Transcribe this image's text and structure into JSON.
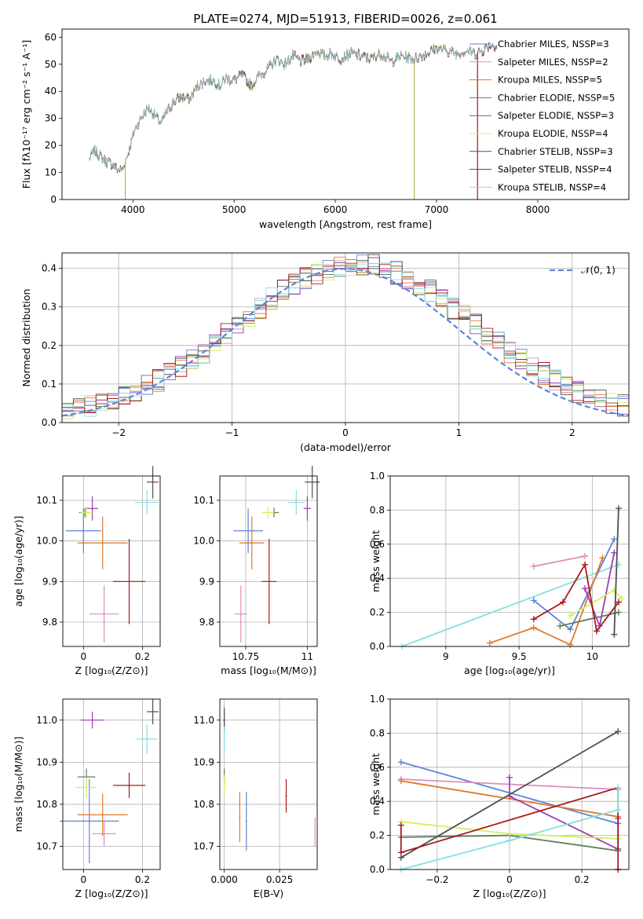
{
  "chart_data": [
    {
      "panel": "spectrum",
      "type": "line",
      "title": "PLATE=0274, MJD=51913, FIBERID=0026, z=0.061",
      "xlabel": "wavelength [Angstrom, rest frame]",
      "ylabel": "Flux [fλ10⁻¹⁷ erg cm⁻² s⁻¹ A⁻¹]",
      "xlim": [
        3300,
        8900
      ],
      "ylim": [
        0,
        63
      ],
      "xticks": [
        4000,
        5000,
        6000,
        7000,
        8000
      ],
      "yticks": [
        0,
        10,
        20,
        30,
        40,
        50,
        60
      ],
      "grid": false,
      "legend": "top-right",
      "series": [
        {
          "name": "Chabrier MILES, NSSP=3",
          "color": "#5e85d6"
        },
        {
          "name": "Salpeter MILES, NSSP=2",
          "color": "#e08cbc"
        },
        {
          "name": "Kroupa MILES, NSSP=5",
          "color": "#e0792b"
        },
        {
          "name": "Chabrier ELODIE, NSSP=5",
          "color": "#5f7f5a"
        },
        {
          "name": "Salpeter ELODIE, NSSP=3",
          "color": "#9c3fb5"
        },
        {
          "name": "Kroupa ELODIE, NSSP=4",
          "color": "#d4ee60"
        },
        {
          "name": "Chabrier STELIB, NSSP=3",
          "color": "#505050"
        },
        {
          "name": "Salpeter STELIB, NSSP=4",
          "color": "#a81b1b"
        },
        {
          "name": "Kroupa STELIB, NSSP=4",
          "color": "#86dfe0"
        }
      ],
      "envelope": {
        "x": [
          3570,
          3620,
          3680,
          3740,
          3800,
          3850,
          3900,
          3960,
          4020,
          4080,
          4150,
          4220,
          4280,
          4330,
          4400,
          4480,
          4560,
          4640,
          4720,
          4800,
          4860,
          4920,
          5000,
          5080,
          5170,
          5250,
          5330,
          5420,
          5500,
          5580,
          5660,
          5740,
          5820,
          5890,
          5960,
          6050,
          6150,
          6250,
          6350,
          6450,
          6550,
          6650,
          6780,
          6900,
          7000,
          7100,
          7200,
          7300,
          7380,
          7450,
          7520,
          7600
        ],
        "y": [
          15,
          18,
          16,
          14,
          13,
          11,
          11,
          18,
          26,
          30,
          34,
          31,
          28,
          32,
          36,
          38,
          37,
          42,
          44,
          44,
          42,
          45,
          44,
          46,
          42,
          46,
          48,
          52,
          50,
          53,
          51,
          52,
          55,
          53,
          54,
          52,
          54,
          53,
          52,
          54,
          51,
          53,
          52,
          54,
          56,
          55,
          54,
          55,
          54,
          55,
          57,
          57
        ]
      },
      "spikes": [
        {
          "x": 3925,
          "y": 0
        },
        {
          "x": 6780,
          "y": 0
        },
        {
          "x": 7405,
          "y": 0
        }
      ]
    },
    {
      "panel": "residuals",
      "type": "histogram",
      "xlabel": "(data-model)/error",
      "ylabel": "Normed distribution",
      "xlim": [
        -2.5,
        2.5
      ],
      "ylim": [
        0,
        0.44
      ],
      "xticks": [
        -2,
        -1,
        0,
        1,
        2
      ],
      "yticks": [
        0.0,
        0.1,
        0.2,
        0.3,
        0.4
      ],
      "grid": true,
      "legend": "top-right",
      "reference_label": "𝒩(0, 1)",
      "reference_color": "#5e85d6",
      "bin_width": 0.1
    },
    {
      "panel": "age-vs-Z",
      "type": "scatter",
      "xlabel": "Z [log₁₀(Z/Z⊙)]",
      "ylabel": "age  [log₁₀(age/yr)]",
      "xlim": [
        -0.07,
        0.26
      ],
      "ylim": [
        9.74,
        10.16
      ],
      "xticks": [
        0.0,
        0.2
      ],
      "yticks": [
        9.8,
        9.9,
        10.0,
        10.1
      ],
      "grid": true,
      "points": [
        {
          "x": 0.0,
          "y": 10.025,
          "xerr": 0.06,
          "yerr": 0.055,
          "color": "#5e85d6"
        },
        {
          "x": 0.07,
          "y": 9.82,
          "xerr": 0.05,
          "yerr": 0.07,
          "color": "#e08cbc"
        },
        {
          "x": 0.065,
          "y": 9.995,
          "xerr": 0.085,
          "yerr": 0.065,
          "color": "#e0792b"
        },
        {
          "x": 0.005,
          "y": 10.07,
          "xerr": 0.02,
          "yerr": 0.012,
          "color": "#5f7f5a"
        },
        {
          "x": 0.03,
          "y": 10.08,
          "xerr": 0.02,
          "yerr": 0.03,
          "color": "#9c3fb5"
        },
        {
          "x": 0.01,
          "y": 10.07,
          "xerr": 0.02,
          "yerr": 0.015,
          "color": "#d4ee60"
        },
        {
          "x": 0.235,
          "y": 10.145,
          "xerr": 0.02,
          "yerr": 0.04,
          "color": "#505050"
        },
        {
          "x": 0.155,
          "y": 9.9,
          "xerr": 0.055,
          "yerr": 0.105,
          "color": "#a81b1b"
        },
        {
          "x": 0.215,
          "y": 10.095,
          "xerr": 0.04,
          "yerr": 0.03,
          "color": "#86dfe0"
        }
      ]
    },
    {
      "panel": "age-vs-mass",
      "type": "scatter",
      "xlabel": "mass [log₁₀(M/M⊙)]",
      "xlim": [
        10.645,
        11.04
      ],
      "ylim": [
        9.74,
        10.16
      ],
      "xticks": [
        10.75,
        11.0
      ],
      "yticks": [
        9.8,
        9.9,
        10.0,
        10.1
      ],
      "grid": true,
      "points": [
        {
          "x": 10.76,
          "y": 10.025,
          "xerr": 0.06,
          "yerr": 0.055,
          "color": "#5e85d6"
        },
        {
          "x": 10.73,
          "y": 9.82,
          "xerr": 0.025,
          "yerr": 0.07,
          "color": "#e08cbc"
        },
        {
          "x": 10.775,
          "y": 9.995,
          "xerr": 0.05,
          "yerr": 0.065,
          "color": "#e0792b"
        },
        {
          "x": 10.865,
          "y": 10.07,
          "xerr": 0.02,
          "yerr": 0.012,
          "color": "#5f7f5a"
        },
        {
          "x": 11.0,
          "y": 10.08,
          "xerr": 0.015,
          "yerr": 0.03,
          "color": "#9c3fb5"
        },
        {
          "x": 10.84,
          "y": 10.07,
          "xerr": 0.025,
          "yerr": 0.015,
          "color": "#d4ee60"
        },
        {
          "x": 11.02,
          "y": 10.145,
          "xerr": 0.03,
          "yerr": 0.04,
          "color": "#505050"
        },
        {
          "x": 10.845,
          "y": 9.9,
          "xerr": 0.03,
          "yerr": 0.105,
          "color": "#a81b1b"
        },
        {
          "x": 10.955,
          "y": 10.095,
          "xerr": 0.035,
          "yerr": 0.03,
          "color": "#86dfe0"
        }
      ]
    },
    {
      "panel": "massweight-vs-age",
      "type": "line",
      "xlabel": "age  [log₁₀(age/yr)]",
      "ylabel": "mass weight",
      "xlim": [
        8.62,
        10.25
      ],
      "ylim": [
        0,
        1.0
      ],
      "xticks": [
        9.0,
        9.5,
        10.0
      ],
      "yticks": [
        0.0,
        0.2,
        0.4,
        0.6,
        0.8,
        1.0
      ],
      "grid": true,
      "series": [
        {
          "color": "#86dfe0",
          "x": [
            8.7,
            10.18
          ],
          "y": [
            0.0,
            0.48
          ]
        },
        {
          "color": "#5e85d6",
          "x": [
            9.6,
            9.85,
            10.15
          ],
          "y": [
            0.27,
            0.1,
            0.63
          ]
        },
        {
          "color": "#e08cbc",
          "x": [
            9.6,
            9.95
          ],
          "y": [
            0.47,
            0.53
          ]
        },
        {
          "color": "#e0792b",
          "x": [
            9.3,
            9.6,
            9.85,
            10.07
          ],
          "y": [
            0.02,
            0.11,
            0.01,
            0.52
          ]
        },
        {
          "color": "#5f7f5a",
          "x": [
            9.78,
            10.18
          ],
          "y": [
            0.12,
            0.2
          ]
        },
        {
          "color": "#9c3fb5",
          "x": [
            9.95,
            10.05,
            10.15
          ],
          "y": [
            0.34,
            0.12,
            0.55
          ]
        },
        {
          "color": "#d4ee60",
          "x": [
            9.85,
            10.15,
            10.2
          ],
          "y": [
            0.18,
            0.33,
            0.28
          ]
        },
        {
          "color": "#505050",
          "x": [
            10.15,
            10.18
          ],
          "y": [
            0.07,
            0.81
          ]
        },
        {
          "color": "#a81b1b",
          "x": [
            9.6,
            9.8,
            9.95,
            10.03,
            10.18
          ],
          "y": [
            0.16,
            0.26,
            0.48,
            0.09,
            0.26
          ]
        }
      ]
    },
    {
      "panel": "mass-vs-Z",
      "type": "scatter",
      "xlabel": "Z [log₁₀(Z/Z⊙)]",
      "ylabel": "mass [log₁₀(M/M⊙)]",
      "xlim": [
        -0.07,
        0.26
      ],
      "ylim": [
        10.645,
        11.05
      ],
      "xticks": [
        0.0,
        0.2
      ],
      "yticks": [
        10.7,
        10.8,
        10.9,
        11.0
      ],
      "grid": true,
      "points": [
        {
          "x": 0.02,
          "y": 10.76,
          "xerr": 0.1,
          "yerr": 0.1,
          "color": "#5e85d6"
        },
        {
          "x": 0.07,
          "y": 10.73,
          "xerr": 0.04,
          "yerr": 0.03,
          "color": "#e08cbc"
        },
        {
          "x": 0.065,
          "y": 10.775,
          "xerr": 0.085,
          "yerr": 0.05,
          "color": "#e0792b"
        },
        {
          "x": 0.01,
          "y": 10.865,
          "xerr": 0.03,
          "yerr": 0.02,
          "color": "#5f7f5a"
        },
        {
          "x": 0.03,
          "y": 11.0,
          "xerr": 0.04,
          "yerr": 0.02,
          "color": "#9c3fb5"
        },
        {
          "x": 0.01,
          "y": 10.84,
          "xerr": 0.035,
          "yerr": 0.025,
          "color": "#d4ee60"
        },
        {
          "x": 0.235,
          "y": 11.02,
          "xerr": 0.02,
          "yerr": 0.03,
          "color": "#505050"
        },
        {
          "x": 0.155,
          "y": 10.845,
          "xerr": 0.055,
          "yerr": 0.03,
          "color": "#a81b1b"
        },
        {
          "x": 0.215,
          "y": 10.955,
          "xerr": 0.035,
          "yerr": 0.035,
          "color": "#86dfe0"
        }
      ]
    },
    {
      "panel": "mass-vs-EBV",
      "type": "errorbar",
      "xlabel": "E(B-V)",
      "xlim": [
        -0.002,
        0.042
      ],
      "ylim": [
        10.645,
        11.05
      ],
      "xticks": [
        0.0,
        0.025
      ],
      "xticklabels": [
        "0.000",
        "0.025"
      ],
      "yticks": [
        10.7,
        10.8,
        10.9,
        11.0
      ],
      "grid": true,
      "points": [
        {
          "x": 0.01,
          "y": 10.76,
          "yerr": 0.07,
          "color": "#5e85d6"
        },
        {
          "x": 0.041,
          "y": 10.735,
          "yerr": 0.035,
          "color": "#e08cbc"
        },
        {
          "x": 0.007,
          "y": 10.77,
          "yerr": 0.06,
          "color": "#e0792b"
        },
        {
          "x": 0.0,
          "y": 10.865,
          "yerr": 0.02,
          "color": "#5f7f5a"
        },
        {
          "x": 0.0,
          "y": 11.0,
          "yerr": 0.02,
          "color": "#9c3fb5"
        },
        {
          "x": 0.0,
          "y": 10.845,
          "yerr": 0.025,
          "color": "#d4ee60"
        },
        {
          "x": 0.0,
          "y": 11.0,
          "yerr": 0.03,
          "color": "#505050"
        },
        {
          "x": 0.028,
          "y": 10.82,
          "yerr": 0.04,
          "color": "#a81b1b"
        },
        {
          "x": 0.0,
          "y": 10.955,
          "yerr": 0.03,
          "color": "#86dfe0"
        }
      ]
    },
    {
      "panel": "massweight-vs-Z",
      "type": "line",
      "xlabel": "Z [log₁₀(Z/Z⊙)]",
      "ylabel": "mass weight",
      "xlim": [
        -0.33,
        0.33
      ],
      "ylim": [
        0,
        1.0
      ],
      "xticks": [
        -0.2,
        0.0,
        0.2
      ],
      "yticks": [
        0.0,
        0.2,
        0.4,
        0.6,
        0.8,
        1.0
      ],
      "grid": true,
      "series": [
        {
          "color": "#5e85d6",
          "x": [
            -0.3,
            0.3
          ],
          "y": [
            0.63,
            0.27
          ]
        },
        {
          "color": "#e08cbc",
          "x": [
            -0.3,
            0.3
          ],
          "y": [
            0.53,
            0.47
          ]
        },
        {
          "color": "#e0792b",
          "x": [
            -0.3,
            0.3
          ],
          "y": [
            0.52,
            0.31
          ]
        },
        {
          "color": "#5f7f5a",
          "x": [
            -0.3,
            0.0,
            0.3
          ],
          "y": [
            0.19,
            0.2,
            0.11
          ]
        },
        {
          "color": "#9c3fb5",
          "x": [
            0.0,
            0.0,
            0.3,
            0.3
          ],
          "y": [
            0.54,
            0.43,
            0.12,
            0.3
          ]
        },
        {
          "color": "#d4ee60",
          "x": [
            -0.3,
            0.0,
            0.3
          ],
          "y": [
            0.28,
            0.21,
            0.18
          ]
        },
        {
          "color": "#505050",
          "x": [
            -0.3,
            0.3
          ],
          "y": [
            0.07,
            0.81
          ]
        },
        {
          "color": "#a81b1b",
          "x": [
            -0.3,
            -0.3,
            0.3,
            0.3
          ],
          "y": [
            0.26,
            0.1,
            0.48,
            0.0
          ]
        },
        {
          "color": "#86dfe0",
          "x": [
            -0.3,
            0.0,
            0.3,
            0.3
          ],
          "y": [
            0.0,
            0.17,
            0.35,
            0.48
          ]
        }
      ]
    }
  ]
}
